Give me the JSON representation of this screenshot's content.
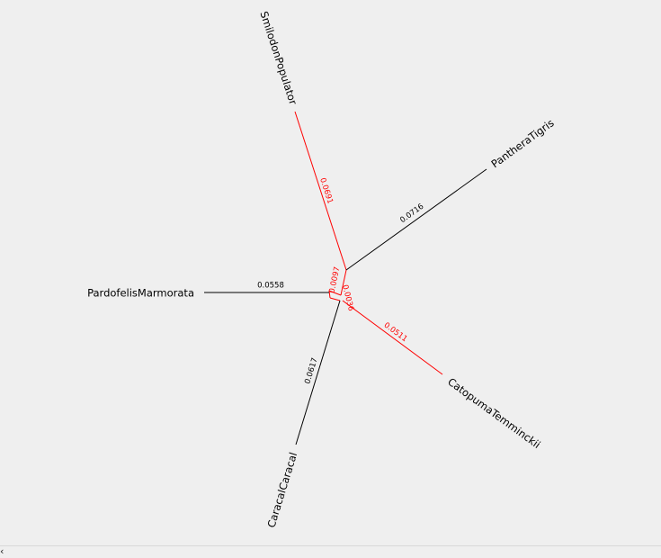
{
  "colors": {
    "normal": "#000000",
    "highlight": "#ff0000",
    "background": "#efefef"
  },
  "taxa": {
    "smilodon": "SmilodonPopulator",
    "panthera": "PantheraTigris",
    "pardofelis": "PardofelisMarmorata",
    "caracal": "CaracalCaracal",
    "catopuma": "CatopumaTemminckii"
  },
  "branch_lengths": {
    "smilodon": "0.0691",
    "panthera": "0.0716",
    "pardofelis": "0.0558",
    "caracal": "0.0617",
    "catopuma": "0.0511",
    "internal_a": "0.0097",
    "internal_b": "0.0036"
  },
  "scrollbar": {
    "left_arrow": "‹"
  }
}
